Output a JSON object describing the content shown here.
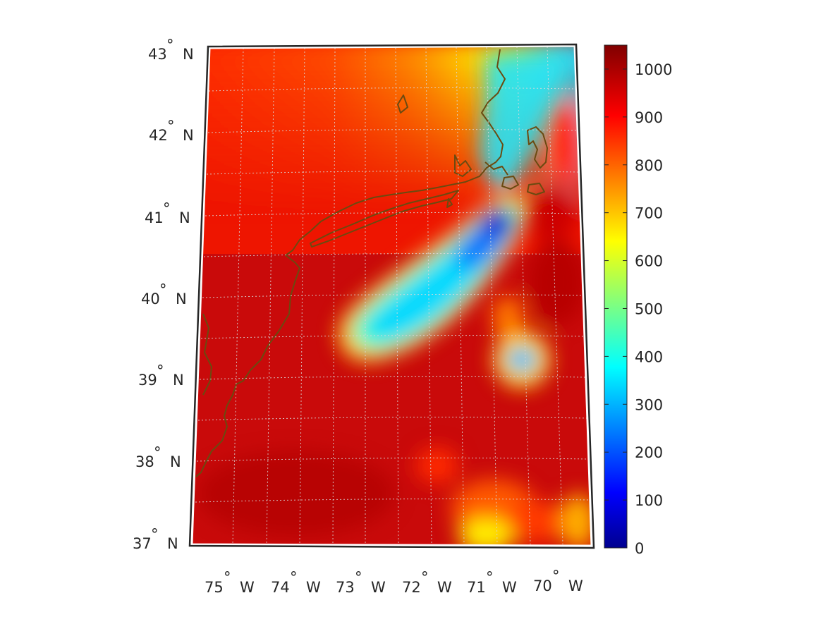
{
  "map": {
    "projection": "conic",
    "degree_symbol": "°",
    "lat_labels": [
      {
        "deg": "43",
        "hemi": "N",
        "value": 43
      },
      {
        "deg": "42",
        "hemi": "N",
        "value": 42
      },
      {
        "deg": "41",
        "hemi": "N",
        "value": 41
      },
      {
        "deg": "40",
        "hemi": "N",
        "value": 40
      },
      {
        "deg": "39",
        "hemi": "N",
        "value": 39
      },
      {
        "deg": "38",
        "hemi": "N",
        "value": 38
      },
      {
        "deg": "37",
        "hemi": "N",
        "value": 37
      }
    ],
    "lon_labels": [
      {
        "deg": "75",
        "hemi": "W",
        "value": -75
      },
      {
        "deg": "74",
        "hemi": "W",
        "value": -74
      },
      {
        "deg": "73",
        "hemi": "W",
        "value": -73
      },
      {
        "deg": "72",
        "hemi": "W",
        "value": -72
      },
      {
        "deg": "71",
        "hemi": "W",
        "value": -71
      },
      {
        "deg": "70",
        "hemi": "W",
        "value": -70
      }
    ],
    "lat_range": [
      37,
      43
    ],
    "lon_range": [
      -75.5,
      -69.6
    ],
    "grid": true,
    "coastline_color": "#6b4a10",
    "frame_color": "#262626"
  },
  "colorbar": {
    "colormap": "jet",
    "range": [
      0,
      1050
    ],
    "ticks": [
      "1000",
      "900",
      "800",
      "700",
      "600",
      "500",
      "400",
      "300",
      "200",
      "100",
      "0"
    ],
    "tick_values": [
      1000,
      900,
      800,
      700,
      600,
      500,
      400,
      300,
      200,
      100,
      0
    ]
  }
}
